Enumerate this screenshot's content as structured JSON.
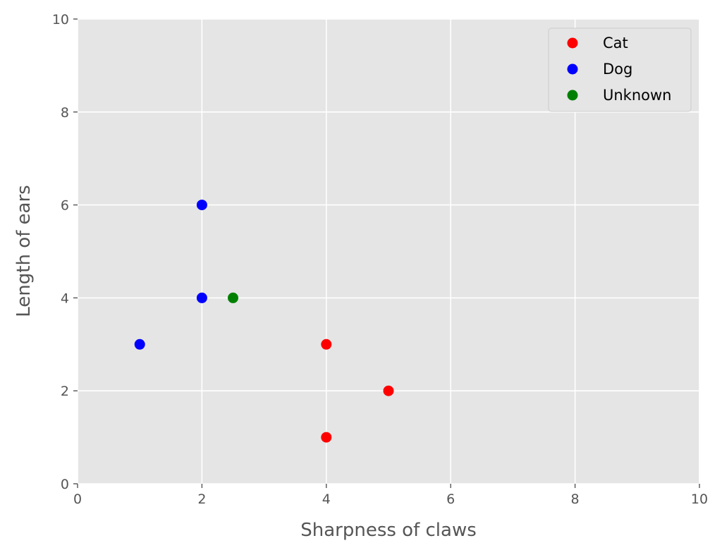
{
  "chart_data": {
    "type": "scatter",
    "xlabel": "Sharpness of claws",
    "ylabel": "Length of ears",
    "xlim": [
      0,
      10
    ],
    "ylim": [
      0,
      10
    ],
    "xticks": [
      "0",
      "2",
      "4",
      "6",
      "8",
      "10"
    ],
    "yticks": [
      "0",
      "2",
      "4",
      "6",
      "8",
      "10"
    ],
    "grid": true,
    "legend_position": "top-right",
    "series": [
      {
        "name": "Cat",
        "color": "#ff0000",
        "points": [
          [
            4,
            3
          ],
          [
            5,
            2
          ],
          [
            4,
            1
          ]
        ]
      },
      {
        "name": "Dog",
        "color": "#0000ff",
        "points": [
          [
            2,
            6
          ],
          [
            2,
            4
          ],
          [
            1,
            3
          ]
        ]
      },
      {
        "name": "Unknown",
        "color": "#008000",
        "points": [
          [
            2.5,
            4
          ]
        ]
      }
    ]
  }
}
